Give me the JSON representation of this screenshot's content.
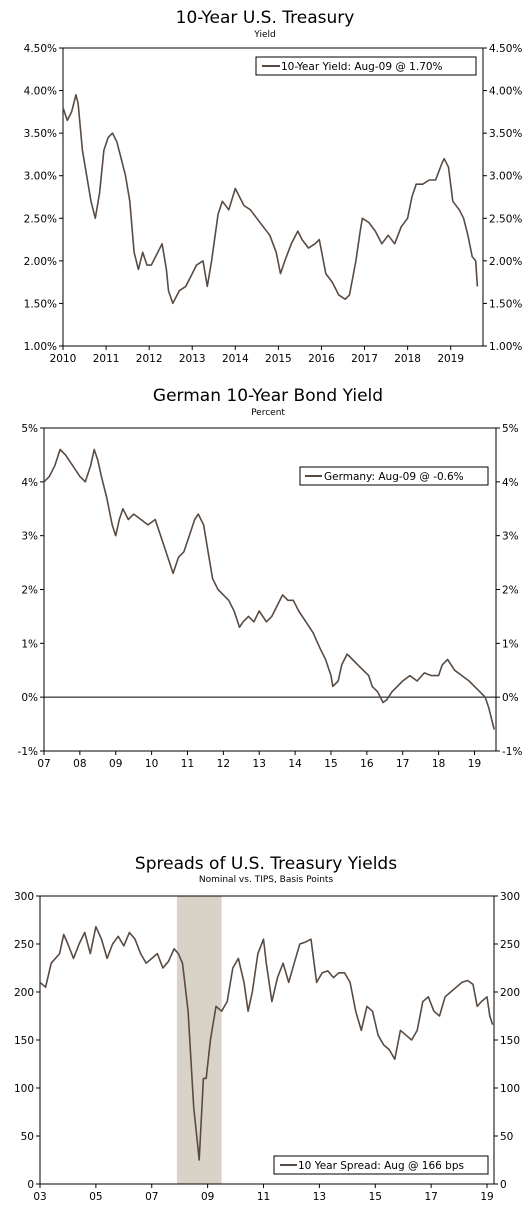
{
  "colors": {
    "series": "#5a4b42",
    "axis": "#000000",
    "recession": "#d9d3c7",
    "background": "#ffffff"
  },
  "chart_data": [
    {
      "type": "line",
      "title": "10-Year U.S. Treasury",
      "subtitle": "Yield",
      "legend": "10-Year Yield: Aug-09 @ 1.70%",
      "legend_position": "top-right",
      "ylim": [
        1.0,
        4.5
      ],
      "yticks": [
        "1.00%",
        "1.50%",
        "2.00%",
        "2.50%",
        "3.00%",
        "3.50%",
        "4.00%",
        "4.50%"
      ],
      "ytick_values": [
        1.0,
        1.5,
        2.0,
        2.5,
        3.0,
        3.5,
        4.0,
        4.5
      ],
      "xlim": [
        2010,
        2019.75
      ],
      "xticks": [
        "2010",
        "2011",
        "2012",
        "2013",
        "2014",
        "2015",
        "2016",
        "2017",
        "2018",
        "2019"
      ],
      "xtick_values": [
        2010,
        2011,
        2012,
        2013,
        2014,
        2015,
        2016,
        2017,
        2018,
        2019
      ],
      "grid": false,
      "series": [
        {
          "x": [
            2010.0,
            2010.1,
            2010.2,
            2010.3,
            2010.35,
            2010.45,
            2010.55,
            2010.65,
            2010.75,
            2010.85,
            2010.95,
            2011.05,
            2011.15,
            2011.25,
            2011.35,
            2011.45,
            2011.55,
            2011.65,
            2011.75,
            2011.85,
            2011.95,
            2012.05,
            2012.2,
            2012.3,
            2012.4,
            2012.45,
            2012.55,
            2012.7,
            2012.85,
            2012.95,
            2013.1,
            2013.25,
            2013.35,
            2013.45,
            2013.6,
            2013.7,
            2013.85,
            2014.0,
            2014.1,
            2014.2,
            2014.35,
            2014.5,
            2014.65,
            2014.8,
            2014.95,
            2015.05,
            2015.15,
            2015.3,
            2015.45,
            2015.55,
            2015.7,
            2015.85,
            2015.95,
            2016.1,
            2016.25,
            2016.4,
            2016.55,
            2016.65,
            2016.8,
            2016.9,
            2016.95,
            2017.1,
            2017.25,
            2017.4,
            2017.55,
            2017.7,
            2017.85,
            2018.0,
            2018.1,
            2018.2,
            2018.35,
            2018.5,
            2018.65,
            2018.8,
            2018.85,
            2018.95,
            2019.05,
            2019.2,
            2019.3,
            2019.4,
            2019.5,
            2019.58,
            2019.62
          ],
          "y": [
            3.8,
            3.65,
            3.75,
            3.95,
            3.85,
            3.3,
            3.0,
            2.7,
            2.5,
            2.8,
            3.3,
            3.45,
            3.5,
            3.4,
            3.2,
            3.0,
            2.7,
            2.1,
            1.9,
            2.1,
            1.95,
            1.95,
            2.1,
            2.2,
            1.9,
            1.65,
            1.5,
            1.65,
            1.7,
            1.8,
            1.95,
            2.0,
            1.7,
            2.0,
            2.55,
            2.7,
            2.6,
            2.85,
            2.75,
            2.65,
            2.6,
            2.5,
            2.4,
            2.3,
            2.1,
            1.85,
            2.0,
            2.2,
            2.35,
            2.25,
            2.15,
            2.2,
            2.25,
            1.85,
            1.75,
            1.6,
            1.55,
            1.6,
            2.0,
            2.35,
            2.5,
            2.45,
            2.35,
            2.2,
            2.3,
            2.2,
            2.4,
            2.5,
            2.75,
            2.9,
            2.9,
            2.95,
            2.95,
            3.15,
            3.2,
            3.1,
            2.7,
            2.6,
            2.5,
            2.3,
            2.05,
            2.0,
            1.7
          ]
        }
      ]
    },
    {
      "type": "line",
      "title": "German 10-Year Bond Yield",
      "subtitle": "Percent",
      "legend": "Germany: Aug-09 @ -0.6%",
      "legend_position": "top-right",
      "ylim": [
        -1,
        5
      ],
      "yticks": [
        "-1%",
        "0%",
        "1%",
        "2%",
        "3%",
        "4%",
        "5%"
      ],
      "ytick_values": [
        -1,
        0,
        1,
        2,
        3,
        4,
        5
      ],
      "xlim": [
        2007,
        2019.6
      ],
      "xticks": [
        "07",
        "08",
        "09",
        "10",
        "11",
        "12",
        "13",
        "14",
        "15",
        "16",
        "17",
        "18",
        "19"
      ],
      "xtick_values": [
        2007,
        2008,
        2009,
        2010,
        2011,
        2012,
        2013,
        2014,
        2015,
        2016,
        2017,
        2018,
        2019
      ],
      "zero_line": true,
      "grid": false,
      "series": [
        {
          "x": [
            2007.0,
            2007.15,
            2007.3,
            2007.45,
            2007.6,
            2007.8,
            2008.0,
            2008.15,
            2008.3,
            2008.4,
            2008.5,
            2008.6,
            2008.75,
            2008.9,
            2009.0,
            2009.1,
            2009.2,
            2009.35,
            2009.5,
            2009.7,
            2009.9,
            2010.1,
            2010.3,
            2010.45,
            2010.6,
            2010.75,
            2010.9,
            2011.05,
            2011.2,
            2011.3,
            2011.45,
            2011.6,
            2011.7,
            2011.85,
            2012.0,
            2012.15,
            2012.3,
            2012.45,
            2012.55,
            2012.7,
            2012.85,
            2013.0,
            2013.2,
            2013.35,
            2013.5,
            2013.65,
            2013.8,
            2013.95,
            2014.1,
            2014.3,
            2014.5,
            2014.7,
            2014.85,
            2015.0,
            2015.05,
            2015.2,
            2015.3,
            2015.45,
            2015.6,
            2015.75,
            2015.9,
            2016.05,
            2016.15,
            2016.3,
            2016.45,
            2016.55,
            2016.7,
            2016.85,
            2017.0,
            2017.2,
            2017.4,
            2017.6,
            2017.8,
            2018.0,
            2018.1,
            2018.25,
            2018.45,
            2018.65,
            2018.85,
            2019.0,
            2019.15,
            2019.3,
            2019.4,
            2019.55
          ],
          "y": [
            4.0,
            4.1,
            4.3,
            4.6,
            4.5,
            4.3,
            4.1,
            4.0,
            4.3,
            4.6,
            4.4,
            4.1,
            3.7,
            3.2,
            3.0,
            3.3,
            3.5,
            3.3,
            3.4,
            3.3,
            3.2,
            3.3,
            2.9,
            2.6,
            2.3,
            2.6,
            2.7,
            3.0,
            3.3,
            3.4,
            3.2,
            2.6,
            2.2,
            2.0,
            1.9,
            1.8,
            1.6,
            1.3,
            1.4,
            1.5,
            1.4,
            1.6,
            1.4,
            1.5,
            1.7,
            1.9,
            1.8,
            1.8,
            1.6,
            1.4,
            1.2,
            0.9,
            0.7,
            0.4,
            0.2,
            0.3,
            0.6,
            0.8,
            0.7,
            0.6,
            0.5,
            0.4,
            0.2,
            0.1,
            -0.1,
            -0.05,
            0.1,
            0.2,
            0.3,
            0.4,
            0.3,
            0.45,
            0.4,
            0.4,
            0.6,
            0.7,
            0.5,
            0.4,
            0.3,
            0.2,
            0.1,
            0.0,
            -0.2,
            -0.6
          ]
        }
      ]
    },
    {
      "type": "line",
      "title": "Spreads of U.S. Treasury Yields",
      "subtitle": "Nominal vs. TIPS, Basis Points",
      "legend": "10 Year Spread: Aug @ 166 bps",
      "legend_position": "bottom-right",
      "ylim": [
        0,
        300
      ],
      "yticks": [
        "0",
        "50",
        "100",
        "150",
        "200",
        "250",
        "300"
      ],
      "ytick_values": [
        0,
        50,
        100,
        150,
        200,
        250,
        300
      ],
      "xlim": [
        2003,
        2019.25
      ],
      "xticks": [
        "03",
        "05",
        "07",
        "09",
        "11",
        "13",
        "15",
        "17",
        "19"
      ],
      "xtick_values": [
        2003,
        2005,
        2007,
        2009,
        2011,
        2013,
        2015,
        2017,
        2019
      ],
      "recession_shading": [
        2007.9,
        2009.5
      ],
      "grid": false,
      "series": [
        {
          "x": [
            2003.0,
            2003.2,
            2003.4,
            2003.7,
            2003.85,
            2004.0,
            2004.2,
            2004.4,
            2004.6,
            2004.8,
            2005.0,
            2005.2,
            2005.4,
            2005.6,
            2005.8,
            2006.0,
            2006.2,
            2006.4,
            2006.6,
            2006.8,
            2007.0,
            2007.2,
            2007.4,
            2007.6,
            2007.8,
            2007.95,
            2008.1,
            2008.3,
            2008.5,
            2008.7,
            2008.85,
            2008.95,
            2009.1,
            2009.3,
            2009.5,
            2009.7,
            2009.9,
            2010.1,
            2010.3,
            2010.45,
            2010.6,
            2010.8,
            2011.0,
            2011.1,
            2011.3,
            2011.5,
            2011.7,
            2011.9,
            2012.1,
            2012.3,
            2012.5,
            2012.7,
            2012.9,
            2013.1,
            2013.3,
            2013.5,
            2013.7,
            2013.9,
            2014.1,
            2014.3,
            2014.5,
            2014.7,
            2014.9,
            2015.1,
            2015.3,
            2015.5,
            2015.7,
            2015.9,
            2016.1,
            2016.3,
            2016.5,
            2016.7,
            2016.9,
            2017.1,
            2017.3,
            2017.5,
            2017.7,
            2017.9,
            2018.1,
            2018.3,
            2018.5,
            2018.65,
            2018.8,
            2019.0,
            2019.1,
            2019.2
          ],
          "y": [
            210,
            205,
            230,
            240,
            260,
            250,
            235,
            250,
            262,
            240,
            268,
            255,
            235,
            250,
            258,
            248,
            262,
            255,
            240,
            230,
            235,
            240,
            225,
            232,
            245,
            240,
            230,
            180,
            80,
            25,
            110,
            110,
            150,
            185,
            180,
            190,
            225,
            235,
            210,
            180,
            200,
            240,
            255,
            230,
            190,
            215,
            230,
            210,
            230,
            250,
            252,
            255,
            210,
            220,
            222,
            215,
            220,
            220,
            210,
            180,
            160,
            185,
            180,
            155,
            145,
            140,
            130,
            160,
            155,
            150,
            160,
            190,
            195,
            180,
            175,
            195,
            200,
            205,
            210,
            212,
            208,
            185,
            190,
            195,
            175,
            166
          ]
        }
      ]
    }
  ]
}
